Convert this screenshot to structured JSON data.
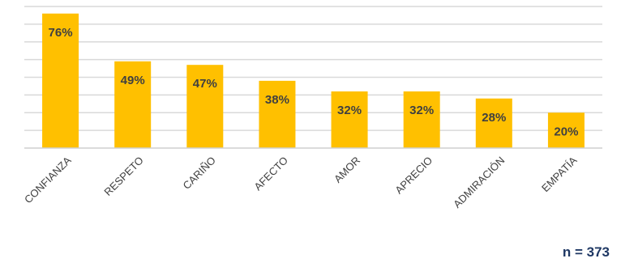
{
  "chart_data": {
    "type": "bar",
    "categories": [
      "CONFIANZA",
      "RESPETO",
      "CARIÑO",
      "AFECTO",
      "AMOR",
      "APRECIO",
      "ADMIRACIÓN",
      "EMPATÍA"
    ],
    "values": [
      76,
      49,
      47,
      38,
      32,
      32,
      28,
      20
    ],
    "data_labels": [
      "76%",
      "49%",
      "47%",
      "38%",
      "32%",
      "32%",
      "28%",
      "20%"
    ],
    "title": "",
    "xlabel": "",
    "ylabel": "",
    "ylim": [
      0,
      80
    ],
    "grid": true,
    "legend": "none",
    "bar_color": "#FFC000",
    "label_color": "#404040"
  },
  "footer": {
    "sample_size": "n = 373",
    "sample_size_color": "#1f3864"
  }
}
